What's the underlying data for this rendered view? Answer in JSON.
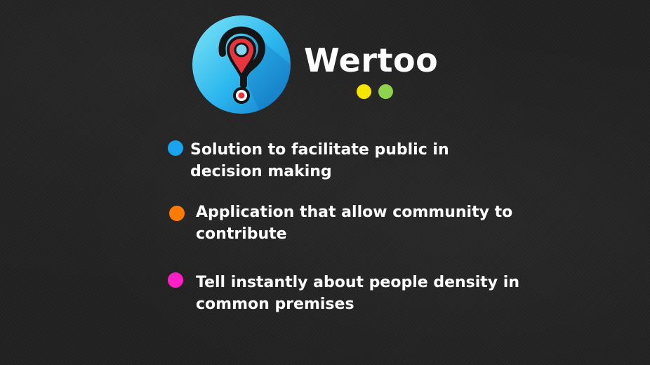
{
  "brand": {
    "name": "Wertoo",
    "logo_icon": "question-mark-map-pin-icon",
    "deco_dots": [
      {
        "color": "#f4e600"
      },
      {
        "color": "#8ed34b"
      }
    ]
  },
  "bullets": [
    {
      "text": "Solution to facilitate public in decision making",
      "color": "#1aa3ee"
    },
    {
      "text": "Application that allow community to contribute",
      "color": "#ff7a00"
    },
    {
      "text": "Tell instantly about people density in common premises",
      "color": "#ff1fc6"
    }
  ]
}
